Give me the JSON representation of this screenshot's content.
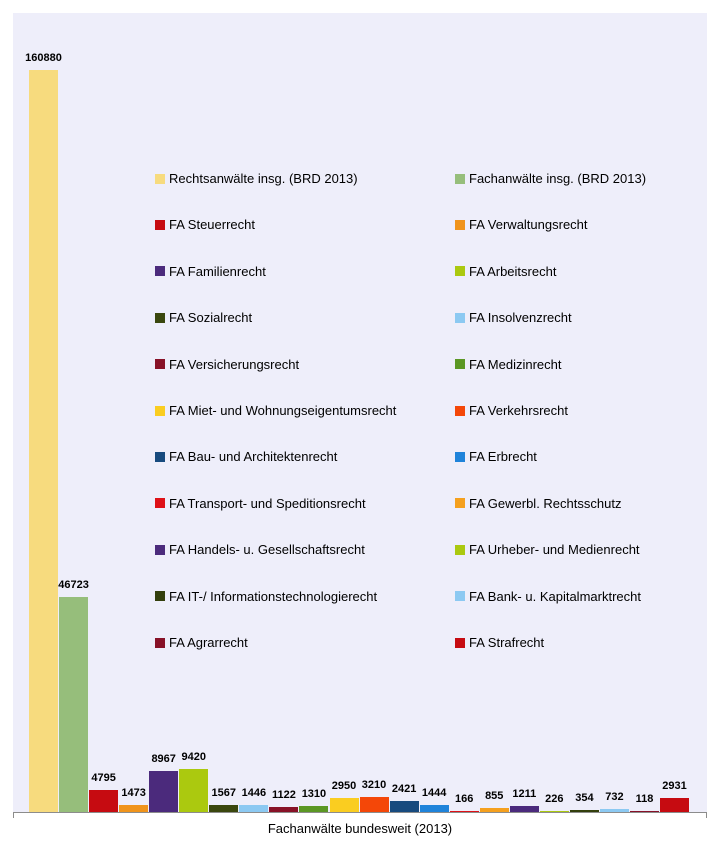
{
  "chart_data": {
    "type": "bar",
    "title": "",
    "xlabel": "Fachanwälte bundesweit (2013)",
    "ylabel": "",
    "ylim": [
      0,
      173000
    ],
    "grid": false,
    "legend_position": "center, two columns",
    "value_labels": "above bars, bold",
    "series": [
      {
        "name": "Rechtsanwälte insg. (BRD 2013)",
        "value": 160880,
        "color": "#F7DB7E"
      },
      {
        "name": "Fachanwälte insg. (BRD 2013)",
        "value": 46723,
        "color": "#96BE7B"
      },
      {
        "name": "FA Steuerrecht",
        "value": 4795,
        "color": "#C60B11"
      },
      {
        "name": "FA Verwaltungsrecht",
        "value": 1473,
        "color": "#F0941C"
      },
      {
        "name": "FA Familienrecht",
        "value": 8967,
        "color": "#4B2A7C"
      },
      {
        "name": "FA Arbeitsrecht",
        "value": 9420,
        "color": "#ABC90F"
      },
      {
        "name": "FA Sozialrecht",
        "value": 1567,
        "color": "#3A470E"
      },
      {
        "name": "FA Insolvenzrecht",
        "value": 1446,
        "color": "#8CC9F2"
      },
      {
        "name": "FA Versicherungsrecht",
        "value": 1122,
        "color": "#871127"
      },
      {
        "name": "FA Medizinrecht",
        "value": 1310,
        "color": "#5B9724"
      },
      {
        "name": "FA Miet- und Wohnungseigentumsrecht",
        "value": 2950,
        "color": "#FACD20"
      },
      {
        "name": "FA Verkehrsrecht",
        "value": 3210,
        "color": "#F44708"
      },
      {
        "name": "FA Bau- und Architektenrecht",
        "value": 2421,
        "color": "#174A7E"
      },
      {
        "name": "FA Erbrecht",
        "value": 1444,
        "color": "#1F83DA"
      },
      {
        "name": "FA Transport- und Speditionsrecht",
        "value": 166,
        "color": "#DE1117"
      },
      {
        "name": "FA Gewerbl. Rechtsschutz",
        "value": 855,
        "color": "#F5A01E"
      },
      {
        "name": "FA Handels- u. Gesellschaftsrecht",
        "value": 1211,
        "color": "#4B2A7C"
      },
      {
        "name": "FA Urheber- und Medienrecht",
        "value": 226,
        "color": "#ABC90F"
      },
      {
        "name": "FA IT-/ Informationstechnologierecht",
        "value": 354,
        "color": "#333F0C"
      },
      {
        "name": "FA Bank- u. Kapitalmarktrecht",
        "value": 732,
        "color": "#8CC9F2"
      },
      {
        "name": "FA Agrarrecht",
        "value": 118,
        "color": "#871127"
      },
      {
        "name": "FA Strafrecht",
        "value": 2931,
        "color": "#C60B11"
      }
    ]
  },
  "colors": {
    "plot_background": "#EEEEFA",
    "page_background": "#FFFFFF",
    "axis_line": "#8C8C8C",
    "text": "#000000"
  }
}
